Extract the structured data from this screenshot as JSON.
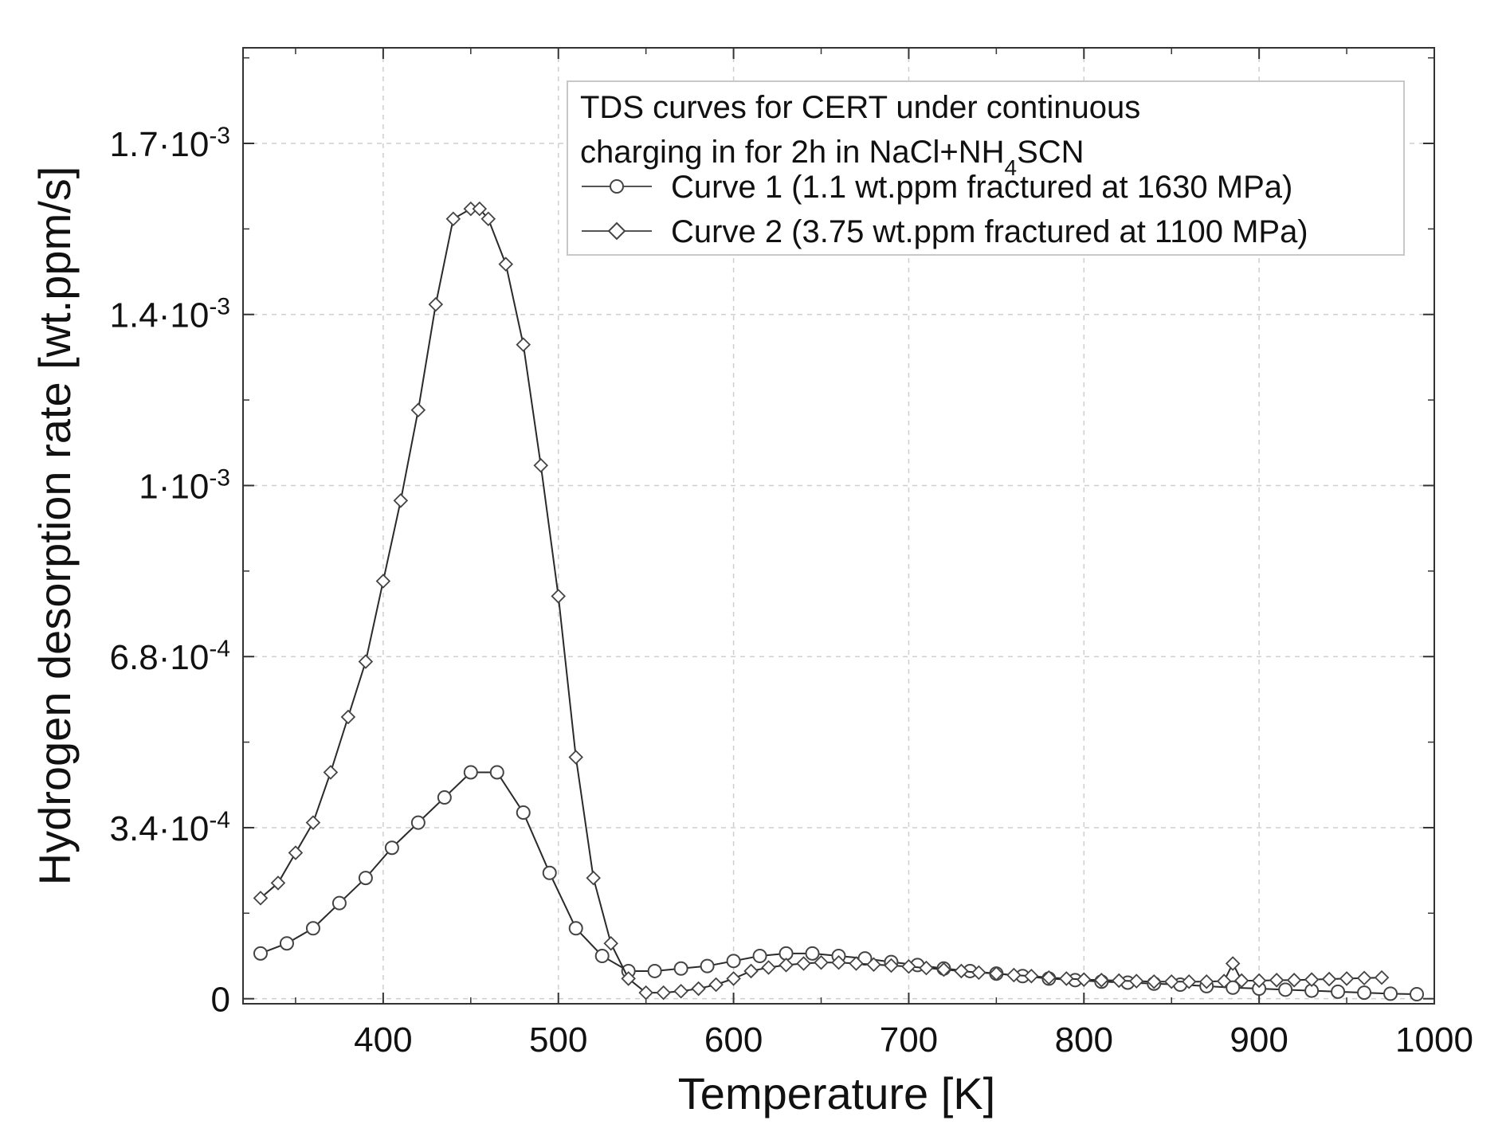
{
  "chart_data": {
    "type": "scatter",
    "title": "",
    "xlabel": "Temperature [K]",
    "ylabel": "Hydrogen desorption rate [wt.ppm/s]",
    "xlim": [
      320,
      1000
    ],
    "ylim": [
      -1e-05,
      0.00189
    ],
    "grid": true,
    "x_ticks": [
      {
        "value": 400,
        "label": "400"
      },
      {
        "value": 500,
        "label": "500"
      },
      {
        "value": 600,
        "label": "600"
      },
      {
        "value": 700,
        "label": "700"
      },
      {
        "value": 800,
        "label": "800"
      },
      {
        "value": 900,
        "label": "900"
      },
      {
        "value": 1000,
        "label": "1000"
      }
    ],
    "y_ticks": [
      {
        "value": 0,
        "mantissa": "0",
        "exponent": ""
      },
      {
        "value": 0.00034,
        "mantissa": "3.4·10",
        "exponent": "-4"
      },
      {
        "value": 0.00068,
        "mantissa": "6.8·10",
        "exponent": "-4"
      },
      {
        "value": 0.00102,
        "mantissa": "1·10",
        "exponent": "-3"
      },
      {
        "value": 0.00136,
        "mantissa": "1.4·10",
        "exponent": "-3"
      },
      {
        "value": 0.0017,
        "mantissa": "1.7·10",
        "exponent": "-3"
      }
    ],
    "legend": {
      "position": "top-right",
      "title_line1": "TDS curves for CERT under continuous",
      "title_line2_prefix": "charging in for 2h in NaCl+NH",
      "title_line2_subscript": "4",
      "title_line2_suffix": "SCN"
    },
    "series": [
      {
        "name": "Curve 1 (1.1 wt.ppm fractured at 1630 MPa)",
        "marker": "circle",
        "x": [
          330,
          345,
          360,
          375,
          390,
          405,
          420,
          435,
          450,
          465,
          480,
          495,
          510,
          525,
          540,
          555,
          570,
          585,
          600,
          615,
          630,
          645,
          660,
          675,
          690,
          705,
          720,
          735,
          750,
          765,
          780,
          795,
          810,
          825,
          840,
          855,
          870,
          885,
          900,
          915,
          930,
          945,
          960,
          975,
          990
        ],
        "y": [
          9e-05,
          0.00011,
          0.00014,
          0.00019,
          0.00024,
          0.0003,
          0.00035,
          0.0004,
          0.00045,
          0.00045,
          0.00037,
          0.00025,
          0.00014,
          8.5e-05,
          5.5e-05,
          5.5e-05,
          6e-05,
          6.5e-05,
          7.5e-05,
          8.5e-05,
          9e-05,
          9e-05,
          8.5e-05,
          8e-05,
          7.3e-05,
          6.7e-05,
          6e-05,
          5.5e-05,
          5e-05,
          4.5e-05,
          4e-05,
          3.7e-05,
          3.4e-05,
          3.2e-05,
          3e-05,
          2.8e-05,
          2.5e-05,
          2.2e-05,
          2e-05,
          1.8e-05,
          1.6e-05,
          1.4e-05,
          1.2e-05,
          1e-05,
          9e-06
        ]
      },
      {
        "name": "Curve 2 (3.75 wt.ppm fractured at 1100 MPa)",
        "marker": "diamond",
        "x": [
          330,
          340,
          350,
          360,
          370,
          380,
          390,
          400,
          410,
          420,
          430,
          440,
          450,
          455,
          460,
          470,
          480,
          490,
          500,
          510,
          520,
          530,
          540,
          550,
          560,
          570,
          580,
          590,
          600,
          610,
          620,
          630,
          640,
          650,
          660,
          670,
          680,
          690,
          700,
          710,
          720,
          730,
          740,
          750,
          760,
          770,
          780,
          790,
          800,
          810,
          820,
          830,
          840,
          850,
          860,
          870,
          880,
          885,
          890,
          900,
          910,
          920,
          930,
          940,
          950,
          960,
          970
        ],
        "y": [
          0.0002,
          0.00023,
          0.00029,
          0.00035,
          0.00045,
          0.00056,
          0.00067,
          0.00083,
          0.00099,
          0.00117,
          0.00138,
          0.00155,
          0.00157,
          0.00157,
          0.00155,
          0.00146,
          0.0013,
          0.00106,
          0.0008,
          0.00048,
          0.00024,
          0.00011,
          4e-05,
          1.2e-05,
          1.2e-05,
          1.5e-05,
          2e-05,
          2.8e-05,
          4e-05,
          5.5e-05,
          6.2e-05,
          6.7e-05,
          7e-05,
          7.2e-05,
          7.2e-05,
          7e-05,
          6.8e-05,
          6.6e-05,
          6.4e-05,
          6.1e-05,
          5.8e-05,
          5.5e-05,
          5.2e-05,
          5e-05,
          4.7e-05,
          4.5e-05,
          4.2e-05,
          4e-05,
          3.8e-05,
          3.7e-05,
          3.6e-05,
          3.5e-05,
          3.4e-05,
          3.4e-05,
          3.4e-05,
          3.4e-05,
          3.5e-05,
          7e-05,
          3.6e-05,
          3.6e-05,
          3.7e-05,
          3.7e-05,
          3.8e-05,
          3.9e-05,
          4e-05,
          4.1e-05,
          4.2e-05
        ]
      }
    ]
  }
}
